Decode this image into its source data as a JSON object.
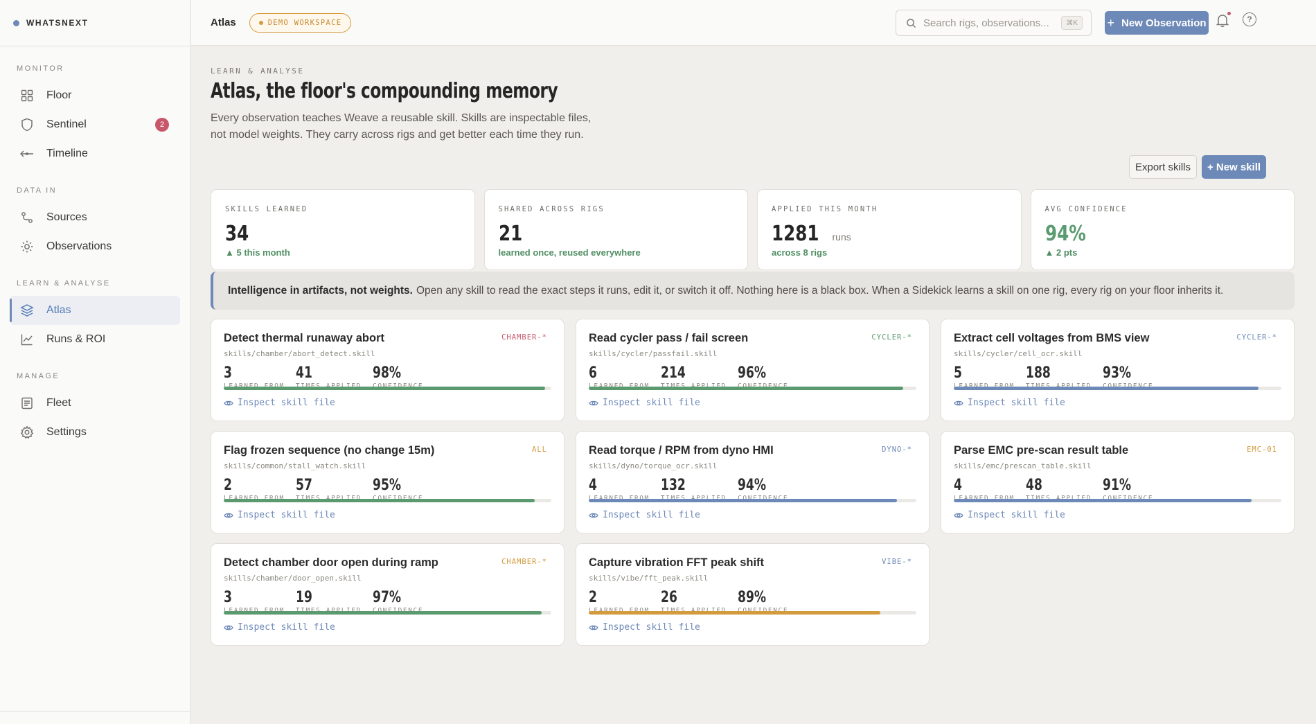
{
  "brand": "WHATSNEXT",
  "sidebar": {
    "sections": [
      {
        "label": "MONITOR",
        "items": [
          {
            "label": "Floor",
            "icon": "grid-icon"
          },
          {
            "label": "Sentinel",
            "icon": "shield-icon",
            "badge": "2"
          },
          {
            "label": "Timeline",
            "icon": "timeline-icon"
          }
        ]
      },
      {
        "label": "DATA IN",
        "items": [
          {
            "label": "Sources",
            "icon": "route-icon"
          },
          {
            "label": "Observations",
            "icon": "sun-icon"
          }
        ]
      },
      {
        "label": "LEARN & ANALYSE",
        "items": [
          {
            "label": "Atlas",
            "icon": "layers-icon",
            "active": true
          },
          {
            "label": "Runs & ROI",
            "icon": "line-chart-icon"
          }
        ]
      },
      {
        "label": "MANAGE",
        "items": [
          {
            "label": "Fleet",
            "icon": "list-icon"
          },
          {
            "label": "Settings",
            "icon": "gear-icon"
          }
        ]
      }
    ]
  },
  "topbar": {
    "crumb": "Atlas",
    "workspace_badge": "DEMO WORKSPACE",
    "search_placeholder": "Search rigs, observations...",
    "shortcut": "⌘K",
    "new_observation": "New Observation"
  },
  "page": {
    "eyebrow": "LEARN & ANALYSE",
    "title": "Atlas, the floor's compounding memory",
    "subtitle": "Every observation teaches Weave a reusable skill. Skills are inspectable files, not model weights. They carry across rigs and get better each time they run.",
    "export_label": "Export skills",
    "new_skill_label": "+ New skill"
  },
  "stats": [
    {
      "label": "SKILLS LEARNED",
      "value": "34",
      "unit": "",
      "sub": "▲ 5 this month"
    },
    {
      "label": "SHARED ACROSS RIGS",
      "value": "21",
      "unit": "",
      "sub": "learned once, reused everywhere"
    },
    {
      "label": "APPLIED THIS MONTH",
      "value": "1281",
      "unit": "runs",
      "sub": "across 8 rigs"
    },
    {
      "label": "AVG CONFIDENCE",
      "value": "94%",
      "unit": "",
      "sub": "▲ 2 pts"
    }
  ],
  "callout": {
    "bold": "Intelligence in artifacts, not weights.",
    "text": "Open any skill to read the exact steps it runs, edit it, or switch it off. Nothing here is a black box. When a Sidekick learns a skill on one rig, every rig on your floor inherits it."
  },
  "metric_labels": {
    "learned": "LEARNED FROM",
    "applied": "TIMES APPLIED",
    "confidence": "CONFIDENCE"
  },
  "inspect_label": "Inspect skill file",
  "colors": {
    "green": "#5a9a6e",
    "blue": "#6d89b8",
    "amber": "#d39a3e",
    "red": "#c8576b"
  },
  "skills": [
    {
      "name": "Detect thermal runaway abort",
      "tag": "CHAMBER-*",
      "tag_color": "#c8576b",
      "path": "skills/chamber/abort_detect.skill",
      "learned": "3",
      "applied": "41",
      "confidence": "98%",
      "level": 0.98,
      "bar_color": "#5a9a6e"
    },
    {
      "name": "Read cycler pass / fail screen",
      "tag": "CYCLER-*",
      "tag_color": "#5a9a6e",
      "path": "skills/cycler/passfail.skill",
      "learned": "6",
      "applied": "214",
      "confidence": "96%",
      "level": 0.96,
      "bar_color": "#5a9a6e"
    },
    {
      "name": "Extract cell voltages from BMS view",
      "tag": "CYCLER-*",
      "tag_color": "#6d89b8",
      "path": "skills/cycler/cell_ocr.skill",
      "learned": "5",
      "applied": "188",
      "confidence": "93%",
      "level": 0.93,
      "bar_color": "#6d89b8"
    },
    {
      "name": "Flag frozen sequence (no change 15m)",
      "tag": "ALL",
      "tag_color": "#d39a3e",
      "path": "skills/common/stall_watch.skill",
      "learned": "2",
      "applied": "57",
      "confidence": "95%",
      "level": 0.95,
      "bar_color": "#5a9a6e"
    },
    {
      "name": "Read torque / RPM from dyno HMI",
      "tag": "DYNO-*",
      "tag_color": "#6d89b8",
      "path": "skills/dyno/torque_ocr.skill",
      "learned": "4",
      "applied": "132",
      "confidence": "94%",
      "level": 0.94,
      "bar_color": "#6d89b8"
    },
    {
      "name": "Parse EMC pre-scan result table",
      "tag": "EMC-01",
      "tag_color": "#d39a3e",
      "path": "skills/emc/prescan_table.skill",
      "learned": "4",
      "applied": "48",
      "confidence": "91%",
      "level": 0.91,
      "bar_color": "#6d89b8"
    },
    {
      "name": "Detect chamber door open during ramp",
      "tag": "CHAMBER-*",
      "tag_color": "#d39a3e",
      "path": "skills/chamber/door_open.skill",
      "learned": "3",
      "applied": "19",
      "confidence": "97%",
      "level": 0.97,
      "bar_color": "#5a9a6e"
    },
    {
      "name": "Capture vibration FFT peak shift",
      "tag": "VIBE-*",
      "tag_color": "#6d89b8",
      "path": "skills/vibe/fft_peak.skill",
      "learned": "2",
      "applied": "26",
      "confidence": "89%",
      "level": 0.89,
      "bar_color": "#d39a3e"
    }
  ]
}
